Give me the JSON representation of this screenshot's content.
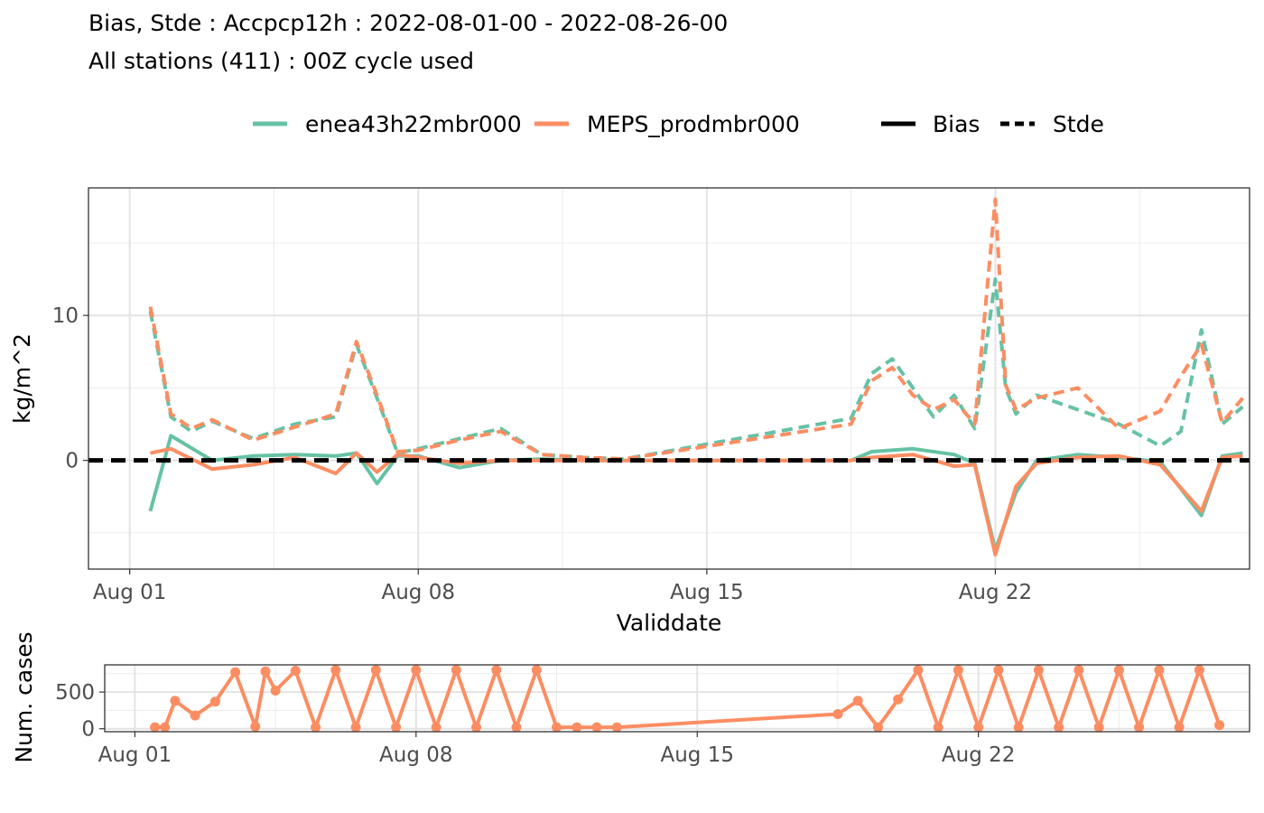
{
  "titles": {
    "line1": "Bias, Stde : Accpcp12h : 2022-08-01-00 - 2022-08-26-00",
    "line2": "All stations (411) : 00Z cycle used"
  },
  "legend": {
    "models": [
      {
        "label": "enea43h22mbr000",
        "color": "#66c2a5"
      },
      {
        "label": "MEPS_prodmbr000",
        "color": "#fc8d62"
      }
    ],
    "linetypes": [
      {
        "label": "Bias",
        "style": "solid"
      },
      {
        "label": "Stde",
        "style": "dashed"
      }
    ]
  },
  "chart_data": [
    {
      "type": "line",
      "xlabel": "Validdate",
      "ylabel": "kg/m^2",
      "x_ticks": [
        "Aug 01",
        "Aug 08",
        "Aug 15",
        "Aug 22"
      ],
      "y_ticks": [
        0,
        10
      ],
      "xlim": [
        "2022-07-31 00:00",
        "2022-08-28 04:00"
      ],
      "ylim": [
        -7.5,
        18.8
      ],
      "grid": true,
      "zero_line": {
        "y": 0,
        "style": "dashed",
        "color": "#000000"
      },
      "series": [
        {
          "name": "enea43h22mbr000",
          "stat": "Bias",
          "color": "#66c2a5",
          "x": [
            "2022-08-01 12:00",
            "2022-08-02 00:00",
            "2022-08-03 00:00",
            "2022-08-04 00:00",
            "2022-08-05 00:00",
            "2022-08-06 00:00",
            "2022-08-06 12:00",
            "2022-08-07 00:00",
            "2022-08-07 12:00",
            "2022-08-08 00:00",
            "2022-08-09 00:00",
            "2022-08-10 00:00",
            "2022-08-11 00:00",
            "2022-08-12 00:00",
            "2022-08-13 00:00",
            "2022-08-18 12:00",
            "2022-08-19 00:00",
            "2022-08-20 00:00",
            "2022-08-21 00:00",
            "2022-08-21 12:00",
            "2022-08-22 00:00",
            "2022-08-22 12:00",
            "2022-08-23 00:00",
            "2022-08-24 00:00",
            "2022-08-25 00:00",
            "2022-08-26 00:00",
            "2022-08-27 00:00",
            "2022-08-27 12:00",
            "2022-08-28 00:00"
          ],
          "y": [
            -3.5,
            1.7,
            0.0,
            0.3,
            0.4,
            0.3,
            0.5,
            -1.6,
            0.3,
            0.3,
            -0.5,
            0.0,
            0.1,
            0.0,
            0.0,
            0.0,
            0.6,
            0.8,
            0.4,
            -0.2,
            -6.2,
            -2.2,
            0.0,
            0.4,
            0.2,
            -0.1,
            -3.8,
            0.3,
            0.5
          ]
        },
        {
          "name": "MEPS_prodmbr000",
          "stat": "Bias",
          "color": "#fc8d62",
          "x": [
            "2022-08-01 12:00",
            "2022-08-02 00:00",
            "2022-08-03 00:00",
            "2022-08-04 00:00",
            "2022-08-05 00:00",
            "2022-08-06 00:00",
            "2022-08-06 12:00",
            "2022-08-07 00:00",
            "2022-08-07 12:00",
            "2022-08-08 00:00",
            "2022-08-09 00:00",
            "2022-08-10 00:00",
            "2022-08-11 00:00",
            "2022-08-12 00:00",
            "2022-08-13 00:00",
            "2022-08-18 12:00",
            "2022-08-19 00:00",
            "2022-08-20 00:00",
            "2022-08-21 00:00",
            "2022-08-21 12:00",
            "2022-08-22 00:00",
            "2022-08-22 12:00",
            "2022-08-23 00:00",
            "2022-08-24 00:00",
            "2022-08-25 00:00",
            "2022-08-26 00:00",
            "2022-08-27 00:00",
            "2022-08-27 12:00",
            "2022-08-28 00:00"
          ],
          "y": [
            0.5,
            0.8,
            -0.6,
            -0.3,
            0.2,
            -0.9,
            0.5,
            -0.8,
            0.4,
            0.2,
            -0.2,
            0.0,
            0.0,
            0.0,
            0.0,
            0.0,
            0.2,
            0.4,
            -0.4,
            -0.3,
            -6.5,
            -1.8,
            -0.2,
            0.2,
            0.3,
            -0.3,
            -3.5,
            0.2,
            0.3
          ]
        },
        {
          "name": "enea43h22mbr000",
          "stat": "Stde",
          "color": "#66c2a5",
          "x": [
            "2022-08-01 12:00",
            "2022-08-02 00:00",
            "2022-08-02 12:00",
            "2022-08-03 00:00",
            "2022-08-04 00:00",
            "2022-08-05 00:00",
            "2022-08-06 00:00",
            "2022-08-06 12:00",
            "2022-08-07 00:00",
            "2022-08-07 12:00",
            "2022-08-08 00:00",
            "2022-08-09 00:00",
            "2022-08-10 00:00",
            "2022-08-11 00:00",
            "2022-08-12 00:00",
            "2022-08-13 00:00",
            "2022-08-18 12:00",
            "2022-08-19 00:00",
            "2022-08-19 12:00",
            "2022-08-20 00:00",
            "2022-08-20 12:00",
            "2022-08-21 00:00",
            "2022-08-21 12:00",
            "2022-08-22 00:00",
            "2022-08-22 06:00",
            "2022-08-22 12:00",
            "2022-08-23 00:00",
            "2022-08-24 00:00",
            "2022-08-25 00:00",
            "2022-08-26 00:00",
            "2022-08-26 12:00",
            "2022-08-27 00:00",
            "2022-08-27 12:00",
            "2022-08-28 00:00"
          ],
          "y": [
            10.3,
            3.0,
            2.0,
            2.7,
            1.5,
            2.5,
            3.0,
            8.0,
            4.3,
            0.5,
            0.8,
            1.5,
            2.2,
            0.4,
            0.2,
            0.1,
            2.9,
            6.0,
            7.0,
            5.0,
            3.0,
            4.5,
            2.2,
            12.5,
            5.0,
            3.2,
            4.5,
            3.5,
            2.5,
            1.0,
            2.0,
            9.0,
            2.5,
            3.7
          ]
        },
        {
          "name": "MEPS_prodmbr000",
          "stat": "Stde",
          "color": "#fc8d62",
          "x": [
            "2022-08-01 12:00",
            "2022-08-02 00:00",
            "2022-08-02 12:00",
            "2022-08-03 00:00",
            "2022-08-04 00:00",
            "2022-08-05 00:00",
            "2022-08-06 00:00",
            "2022-08-06 12:00",
            "2022-08-07 00:00",
            "2022-08-07 12:00",
            "2022-08-08 00:00",
            "2022-08-09 00:00",
            "2022-08-10 00:00",
            "2022-08-11 00:00",
            "2022-08-12 00:00",
            "2022-08-13 00:00",
            "2022-08-18 12:00",
            "2022-08-19 00:00",
            "2022-08-19 12:00",
            "2022-08-20 00:00",
            "2022-08-20 12:00",
            "2022-08-21 00:00",
            "2022-08-21 12:00",
            "2022-08-22 00:00",
            "2022-08-22 06:00",
            "2022-08-22 12:00",
            "2022-08-23 00:00",
            "2022-08-24 00:00",
            "2022-08-25 00:00",
            "2022-08-26 00:00",
            "2022-08-26 12:00",
            "2022-08-27 00:00",
            "2022-08-27 12:00",
            "2022-08-28 00:00"
          ],
          "y": [
            10.6,
            3.2,
            2.2,
            2.8,
            1.4,
            2.3,
            3.2,
            8.2,
            4.5,
            0.6,
            0.7,
            1.4,
            2.0,
            0.4,
            0.2,
            0.1,
            2.5,
            5.5,
            6.4,
            4.5,
            3.5,
            4.2,
            2.5,
            18.0,
            5.2,
            3.5,
            4.3,
            5.0,
            2.2,
            3.4,
            5.8,
            8.0,
            2.6,
            4.3
          ]
        }
      ]
    },
    {
      "type": "line",
      "ylabel": "Num. cases",
      "x_ticks": [
        "Aug 01",
        "Aug 08",
        "Aug 15",
        "Aug 22"
      ],
      "y_ticks": [
        0,
        500
      ],
      "ylim": [
        -40,
        870
      ],
      "grid": true,
      "markers": true,
      "series": [
        {
          "name": "MEPS_prodmbr000",
          "color": "#fc8d62",
          "x_first": "2022-08-01 12:00",
          "x_step_hours": 12,
          "gap_from": "2022-08-13 00:00",
          "gap_to": "2022-08-18 12:00",
          "x": [
            "2022-08-01 12:00",
            "2022-08-01 18:00",
            "2022-08-02 00:00",
            "2022-08-02 12:00",
            "2022-08-03 00:00",
            "2022-08-03 12:00",
            "2022-08-04 00:00",
            "2022-08-04 06:00",
            "2022-08-04 12:00",
            "2022-08-05 00:00",
            "2022-08-05 12:00",
            "2022-08-06 00:00",
            "2022-08-06 12:00",
            "2022-08-07 00:00",
            "2022-08-07 12:00",
            "2022-08-08 00:00",
            "2022-08-08 12:00",
            "2022-08-09 00:00",
            "2022-08-09 12:00",
            "2022-08-10 00:00",
            "2022-08-10 12:00",
            "2022-08-11 00:00",
            "2022-08-11 12:00",
            "2022-08-12 00:00",
            "2022-08-12 12:00",
            "2022-08-13 00:00",
            "2022-08-18 12:00",
            "2022-08-19 00:00",
            "2022-08-19 12:00",
            "2022-08-20 00:00",
            "2022-08-20 12:00",
            "2022-08-21 00:00",
            "2022-08-21 12:00",
            "2022-08-22 00:00",
            "2022-08-22 12:00",
            "2022-08-23 00:00",
            "2022-08-23 12:00",
            "2022-08-24 00:00",
            "2022-08-24 12:00",
            "2022-08-25 00:00",
            "2022-08-25 12:00",
            "2022-08-26 00:00",
            "2022-08-26 12:00",
            "2022-08-27 00:00",
            "2022-08-27 12:00",
            "2022-08-28 00:00"
          ],
          "y": [
            20,
            20,
            380,
            180,
            370,
            770,
            30,
            780,
            520,
            790,
            20,
            800,
            20,
            800,
            20,
            800,
            20,
            800,
            20,
            800,
            20,
            800,
            20,
            20,
            20,
            20,
            200,
            380,
            20,
            400,
            800,
            20,
            800,
            20,
            800,
            20,
            800,
            20,
            800,
            20,
            800,
            20,
            800,
            20,
            800,
            50
          ]
        }
      ]
    }
  ]
}
